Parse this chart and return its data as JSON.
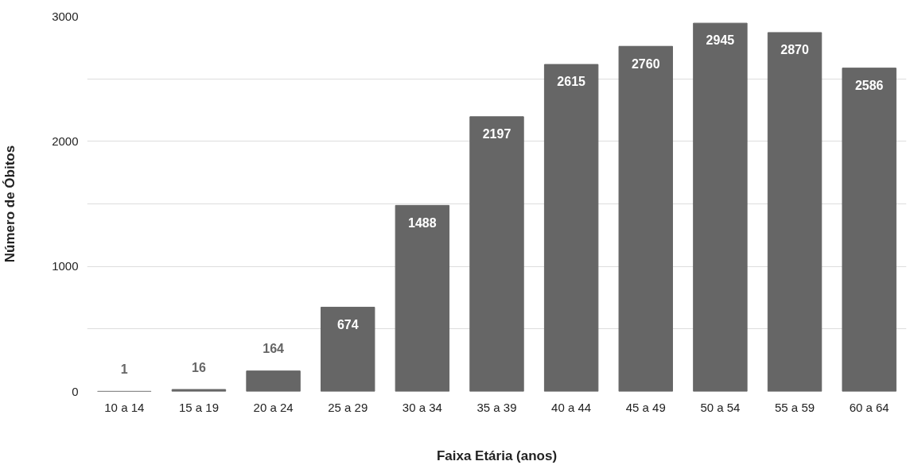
{
  "chart_data": {
    "type": "bar",
    "xlabel": "Faixa Etária (anos)",
    "ylabel": "Número de Óbitos",
    "categories": [
      "10 a 14",
      "15 a 19",
      "20 a 24",
      "25 a 29",
      "30 a 34",
      "35 a 39",
      "40 a 44",
      "45 a 49",
      "50 a 54",
      "55 a 59",
      "60 a 64"
    ],
    "values": [
      1,
      16,
      164,
      674,
      1488,
      2197,
      2615,
      2760,
      2945,
      2870,
      2586
    ],
    "color": "#666666",
    "ylim": [
      0,
      3000
    ],
    "yticks": [
      0,
      {
        "value": 500,
        "label": null
      },
      1000,
      {
        "value": 1500,
        "label": null
      },
      2000,
      {
        "value": 2500,
        "label": null
      },
      3000
    ],
    "grid": "y",
    "data_labels": true
  }
}
